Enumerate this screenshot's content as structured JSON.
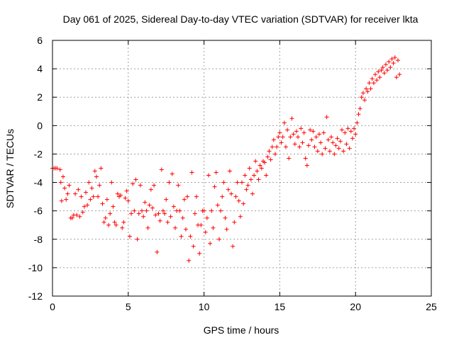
{
  "chart_data": {
    "type": "scatter",
    "title": "Day 061 of 2025, Sidereal Day-to-day VTEC variation (SDTVAR) for receiver lkta",
    "xlabel": "GPS time / hours",
    "ylabel": "SDTVAR / TECUs",
    "xlim": [
      0,
      25
    ],
    "ylim": [
      -12,
      6
    ],
    "xticks": [
      0,
      5,
      10,
      15,
      20,
      25
    ],
    "yticks": [
      -12,
      -10,
      -8,
      -6,
      -4,
      -2,
      0,
      2,
      4,
      6
    ],
    "grid": true,
    "marker": "+",
    "color": "#ff0000",
    "series": [
      {
        "name": "SDTVAR",
        "points": [
          [
            0.0,
            -3.0
          ],
          [
            0.1,
            -3.0
          ],
          [
            0.2,
            -3.0
          ],
          [
            0.3,
            -3.0
          ],
          [
            0.5,
            -3.1
          ],
          [
            0.55,
            -4.0
          ],
          [
            0.6,
            -5.3
          ],
          [
            0.7,
            -3.6
          ],
          [
            0.8,
            -4.4
          ],
          [
            0.9,
            -5.2
          ],
          [
            1.0,
            -4.8
          ],
          [
            1.1,
            -4.2
          ],
          [
            1.2,
            -6.5
          ],
          [
            1.3,
            -6.5
          ],
          [
            1.4,
            -6.3
          ],
          [
            1.5,
            -4.8
          ],
          [
            1.6,
            -6.3
          ],
          [
            1.7,
            -4.5
          ],
          [
            1.8,
            -6.4
          ],
          [
            1.9,
            -5.0
          ],
          [
            2.0,
            -6.1
          ],
          [
            2.1,
            -5.7
          ],
          [
            2.2,
            -4.7
          ],
          [
            2.3,
            -5.6
          ],
          [
            2.4,
            -4.0
          ],
          [
            2.5,
            -5.2
          ],
          [
            2.6,
            -4.4
          ],
          [
            2.7,
            -5.0
          ],
          [
            2.8,
            -3.2
          ],
          [
            2.9,
            -3.6
          ],
          [
            3.0,
            -5.0
          ],
          [
            3.1,
            -4.2
          ],
          [
            3.2,
            -3.0
          ],
          [
            3.3,
            -5.5
          ],
          [
            3.4,
            -6.8
          ],
          [
            3.5,
            -6.5
          ],
          [
            3.6,
            -5.2
          ],
          [
            3.7,
            -7.0
          ],
          [
            3.8,
            -6.2
          ],
          [
            3.9,
            -4.0
          ],
          [
            4.0,
            -5.7
          ],
          [
            4.1,
            -6.8
          ],
          [
            4.2,
            -7.0
          ],
          [
            4.3,
            -4.8
          ],
          [
            4.4,
            -5.0
          ],
          [
            4.5,
            -4.9
          ],
          [
            4.6,
            -7.2
          ],
          [
            4.7,
            -6.8
          ],
          [
            4.8,
            -5.1
          ],
          [
            4.9,
            -4.6
          ],
          [
            5.0,
            -5.3
          ],
          [
            5.1,
            -7.8
          ],
          [
            5.2,
            -6.2
          ],
          [
            5.3,
            -4.1
          ],
          [
            5.4,
            -6.0
          ],
          [
            5.5,
            -3.8
          ],
          [
            5.6,
            -8.0
          ],
          [
            5.7,
            -6.2
          ],
          [
            5.8,
            -4.2
          ],
          [
            5.9,
            -6.0
          ],
          [
            6.0,
            -6.4
          ],
          [
            6.1,
            -5.4
          ],
          [
            6.2,
            -6.0
          ],
          [
            6.3,
            -7.2
          ],
          [
            6.4,
            -5.6
          ],
          [
            6.5,
            -4.5
          ],
          [
            6.6,
            -5.8
          ],
          [
            6.7,
            -4.2
          ],
          [
            6.8,
            -6.3
          ],
          [
            6.9,
            -8.9
          ],
          [
            7.0,
            -6.2
          ],
          [
            7.1,
            -6.7
          ],
          [
            7.2,
            -3.1
          ],
          [
            7.3,
            -6.0
          ],
          [
            7.4,
            -6.2
          ],
          [
            7.5,
            -5.2
          ],
          [
            7.6,
            -6.8
          ],
          [
            7.7,
            -4.0
          ],
          [
            7.8,
            -6.4
          ],
          [
            7.9,
            -3.4
          ],
          [
            8.0,
            -5.7
          ],
          [
            8.1,
            -7.2
          ],
          [
            8.2,
            -6.0
          ],
          [
            8.3,
            -4.2
          ],
          [
            8.4,
            -6.0
          ],
          [
            8.5,
            -7.8
          ],
          [
            8.6,
            -6.5
          ],
          [
            8.7,
            -5.2
          ],
          [
            8.8,
            -7.3
          ],
          [
            8.9,
            -5.0
          ],
          [
            9.0,
            -9.5
          ],
          [
            9.1,
            -7.8
          ],
          [
            9.2,
            -3.3
          ],
          [
            9.3,
            -8.5
          ],
          [
            9.4,
            -6.2
          ],
          [
            9.5,
            -5.0
          ],
          [
            9.6,
            -7.0
          ],
          [
            9.7,
            -9.0
          ],
          [
            9.8,
            -7.0
          ],
          [
            9.9,
            -6.0
          ],
          [
            10.0,
            -6.0
          ],
          [
            10.1,
            -7.5
          ],
          [
            10.2,
            -6.5
          ],
          [
            10.3,
            -3.5
          ],
          [
            10.4,
            -8.3
          ],
          [
            10.5,
            -6.0
          ],
          [
            10.6,
            -7.2
          ],
          [
            10.7,
            -4.3
          ],
          [
            10.8,
            -3.3
          ],
          [
            10.9,
            -5.6
          ],
          [
            11.0,
            -8.0
          ],
          [
            11.1,
            -6.0
          ],
          [
            11.2,
            -5.0
          ],
          [
            11.3,
            -4.0
          ],
          [
            11.4,
            -6.5
          ],
          [
            11.5,
            -7.3
          ],
          [
            11.6,
            -4.5
          ],
          [
            11.7,
            -3.2
          ],
          [
            11.8,
            -4.8
          ],
          [
            11.9,
            -8.5
          ],
          [
            12.0,
            -6.8
          ],
          [
            12.1,
            -5.0
          ],
          [
            12.2,
            -4.0
          ],
          [
            12.3,
            -5.3
          ],
          [
            12.4,
            -6.4
          ],
          [
            12.5,
            -4.0
          ],
          [
            12.6,
            -5.5
          ],
          [
            12.7,
            -3.5
          ],
          [
            12.8,
            -4.5
          ],
          [
            12.9,
            -4.2
          ],
          [
            13.0,
            -3.0
          ],
          [
            13.1,
            -3.8
          ],
          [
            13.2,
            -4.8
          ],
          [
            13.3,
            -3.5
          ],
          [
            13.4,
            -2.5
          ],
          [
            13.5,
            -3.2
          ],
          [
            13.6,
            -3.8
          ],
          [
            13.7,
            -2.8
          ],
          [
            13.8,
            -3.0
          ],
          [
            13.9,
            -2.5
          ],
          [
            14.0,
            -2.6
          ],
          [
            14.1,
            -3.5
          ],
          [
            14.2,
            -2.2
          ],
          [
            14.3,
            -1.8
          ],
          [
            14.4,
            -2.4
          ],
          [
            14.5,
            -1.5
          ],
          [
            14.6,
            -1.0
          ],
          [
            14.7,
            -2.0
          ],
          [
            14.8,
            -1.5
          ],
          [
            14.9,
            -0.8
          ],
          [
            15.0,
            -0.5
          ],
          [
            15.1,
            -1.2
          ],
          [
            15.2,
            -0.8
          ],
          [
            15.3,
            0.2
          ],
          [
            15.4,
            -1.5
          ],
          [
            15.5,
            -0.3
          ],
          [
            15.6,
            -2.3
          ],
          [
            15.7,
            -0.8
          ],
          [
            15.8,
            0.5
          ],
          [
            15.9,
            -0.6
          ],
          [
            16.0,
            -1.3
          ],
          [
            16.1,
            -0.4
          ],
          [
            16.2,
            -0.8
          ],
          [
            16.3,
            -1.5
          ],
          [
            16.4,
            -0.2
          ],
          [
            16.5,
            -1.2
          ],
          [
            16.6,
            -0.5
          ],
          [
            16.7,
            -2.3
          ],
          [
            16.8,
            -2.8
          ],
          [
            16.9,
            -1.4
          ],
          [
            17.0,
            -0.3
          ],
          [
            17.1,
            -1.0
          ],
          [
            17.2,
            -0.4
          ],
          [
            17.3,
            -1.5
          ],
          [
            17.4,
            -0.8
          ],
          [
            17.5,
            -1.8
          ],
          [
            17.6,
            -0.6
          ],
          [
            17.7,
            -1.2
          ],
          [
            17.8,
            -2.0
          ],
          [
            17.9,
            -0.5
          ],
          [
            18.0,
            -1.6
          ],
          [
            18.1,
            0.6
          ],
          [
            18.2,
            -1.0
          ],
          [
            18.3,
            -1.8
          ],
          [
            18.4,
            -0.8
          ],
          [
            18.5,
            -1.2
          ],
          [
            18.6,
            -2.0
          ],
          [
            18.7,
            -1.4
          ],
          [
            18.8,
            -0.9
          ],
          [
            18.9,
            -1.6
          ],
          [
            19.0,
            -1.1
          ],
          [
            19.1,
            -0.3
          ],
          [
            19.2,
            -1.8
          ],
          [
            19.3,
            -0.5
          ],
          [
            19.4,
            -1.3
          ],
          [
            19.5,
            -0.2
          ],
          [
            19.6,
            -1.6
          ],
          [
            19.7,
            -0.4
          ],
          [
            19.8,
            -0.9
          ],
          [
            19.9,
            -0.2
          ],
          [
            20.0,
            -0.6
          ],
          [
            20.1,
            0.2
          ],
          [
            20.2,
            0.8
          ],
          [
            20.3,
            1.2
          ],
          [
            20.4,
            2.0
          ],
          [
            20.5,
            2.3
          ],
          [
            20.6,
            1.8
          ],
          [
            20.7,
            2.6
          ],
          [
            20.8,
            2.4
          ],
          [
            20.9,
            3.0
          ],
          [
            21.0,
            2.6
          ],
          [
            21.1,
            3.3
          ],
          [
            21.2,
            3.0
          ],
          [
            21.3,
            3.6
          ],
          [
            21.4,
            3.2
          ],
          [
            21.5,
            3.8
          ],
          [
            21.6,
            3.4
          ],
          [
            21.7,
            3.9
          ],
          [
            21.8,
            4.1
          ],
          [
            21.9,
            3.7
          ],
          [
            22.0,
            4.3
          ],
          [
            22.1,
            3.9
          ],
          [
            22.2,
            4.5
          ],
          [
            22.3,
            4.1
          ],
          [
            22.4,
            4.7
          ],
          [
            22.5,
            4.4
          ],
          [
            22.6,
            4.8
          ],
          [
            22.7,
            3.4
          ],
          [
            22.8,
            4.6
          ],
          [
            22.9,
            3.6
          ]
        ]
      }
    ]
  }
}
